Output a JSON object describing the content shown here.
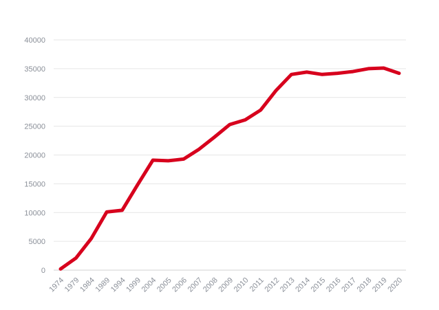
{
  "chart_data": {
    "type": "line",
    "title": "",
    "xlabel": "",
    "ylabel": "",
    "categories": [
      "1974",
      "1979",
      "1984",
      "1989",
      "1994",
      "1999",
      "2004",
      "2005",
      "2006",
      "2007",
      "2008",
      "2009",
      "2010",
      "2011",
      "2012",
      "2013",
      "2014",
      "2015",
      "2016",
      "2017",
      "2018",
      "2019",
      "2020"
    ],
    "series": [
      {
        "values": [
          200,
          2100,
          5500,
          10100,
          10400,
          14800,
          19100,
          19000,
          19300,
          21000,
          23100,
          25300,
          26100,
          27800,
          31200,
          34000,
          34400,
          34000,
          34200,
          34500,
          35000,
          35100,
          34200
        ],
        "color": "#d7001d"
      }
    ],
    "ylim": [
      0,
      40000
    ],
    "yticks": [
      0,
      5000,
      10000,
      15000,
      20000,
      25000,
      30000,
      35000,
      40000
    ],
    "grid": true,
    "legend": "none"
  }
}
